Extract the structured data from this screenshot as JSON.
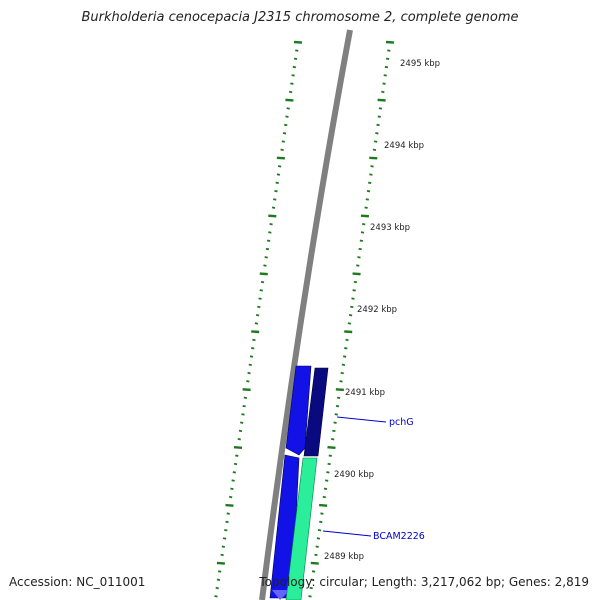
{
  "title": "Burkholderia cenocepacia J2315 chromosome 2, complete genome",
  "footer": {
    "accession": "Accession: NC_011001",
    "summary": "Topology: circular; Length: 3,217,062 bp; Genes: 2,819"
  },
  "scale": {
    "tick_labels": [
      "2495 kbp",
      "2494 kbp",
      "2493 kbp",
      "2492 kbp",
      "2491 kbp",
      "2490 kbp",
      "2489 kbp"
    ]
  },
  "genes": [
    {
      "name": "pchG",
      "strand": "reverse",
      "color": "#0a0a80"
    },
    {
      "name": "BCAM2226",
      "strand": "reverse",
      "color": "#2aee9a"
    }
  ],
  "colors": {
    "backbone": "#808080",
    "gc_ticks": "#1e7a1e",
    "forward_genes": "#1212e6",
    "label_line": "#0000cc"
  }
}
